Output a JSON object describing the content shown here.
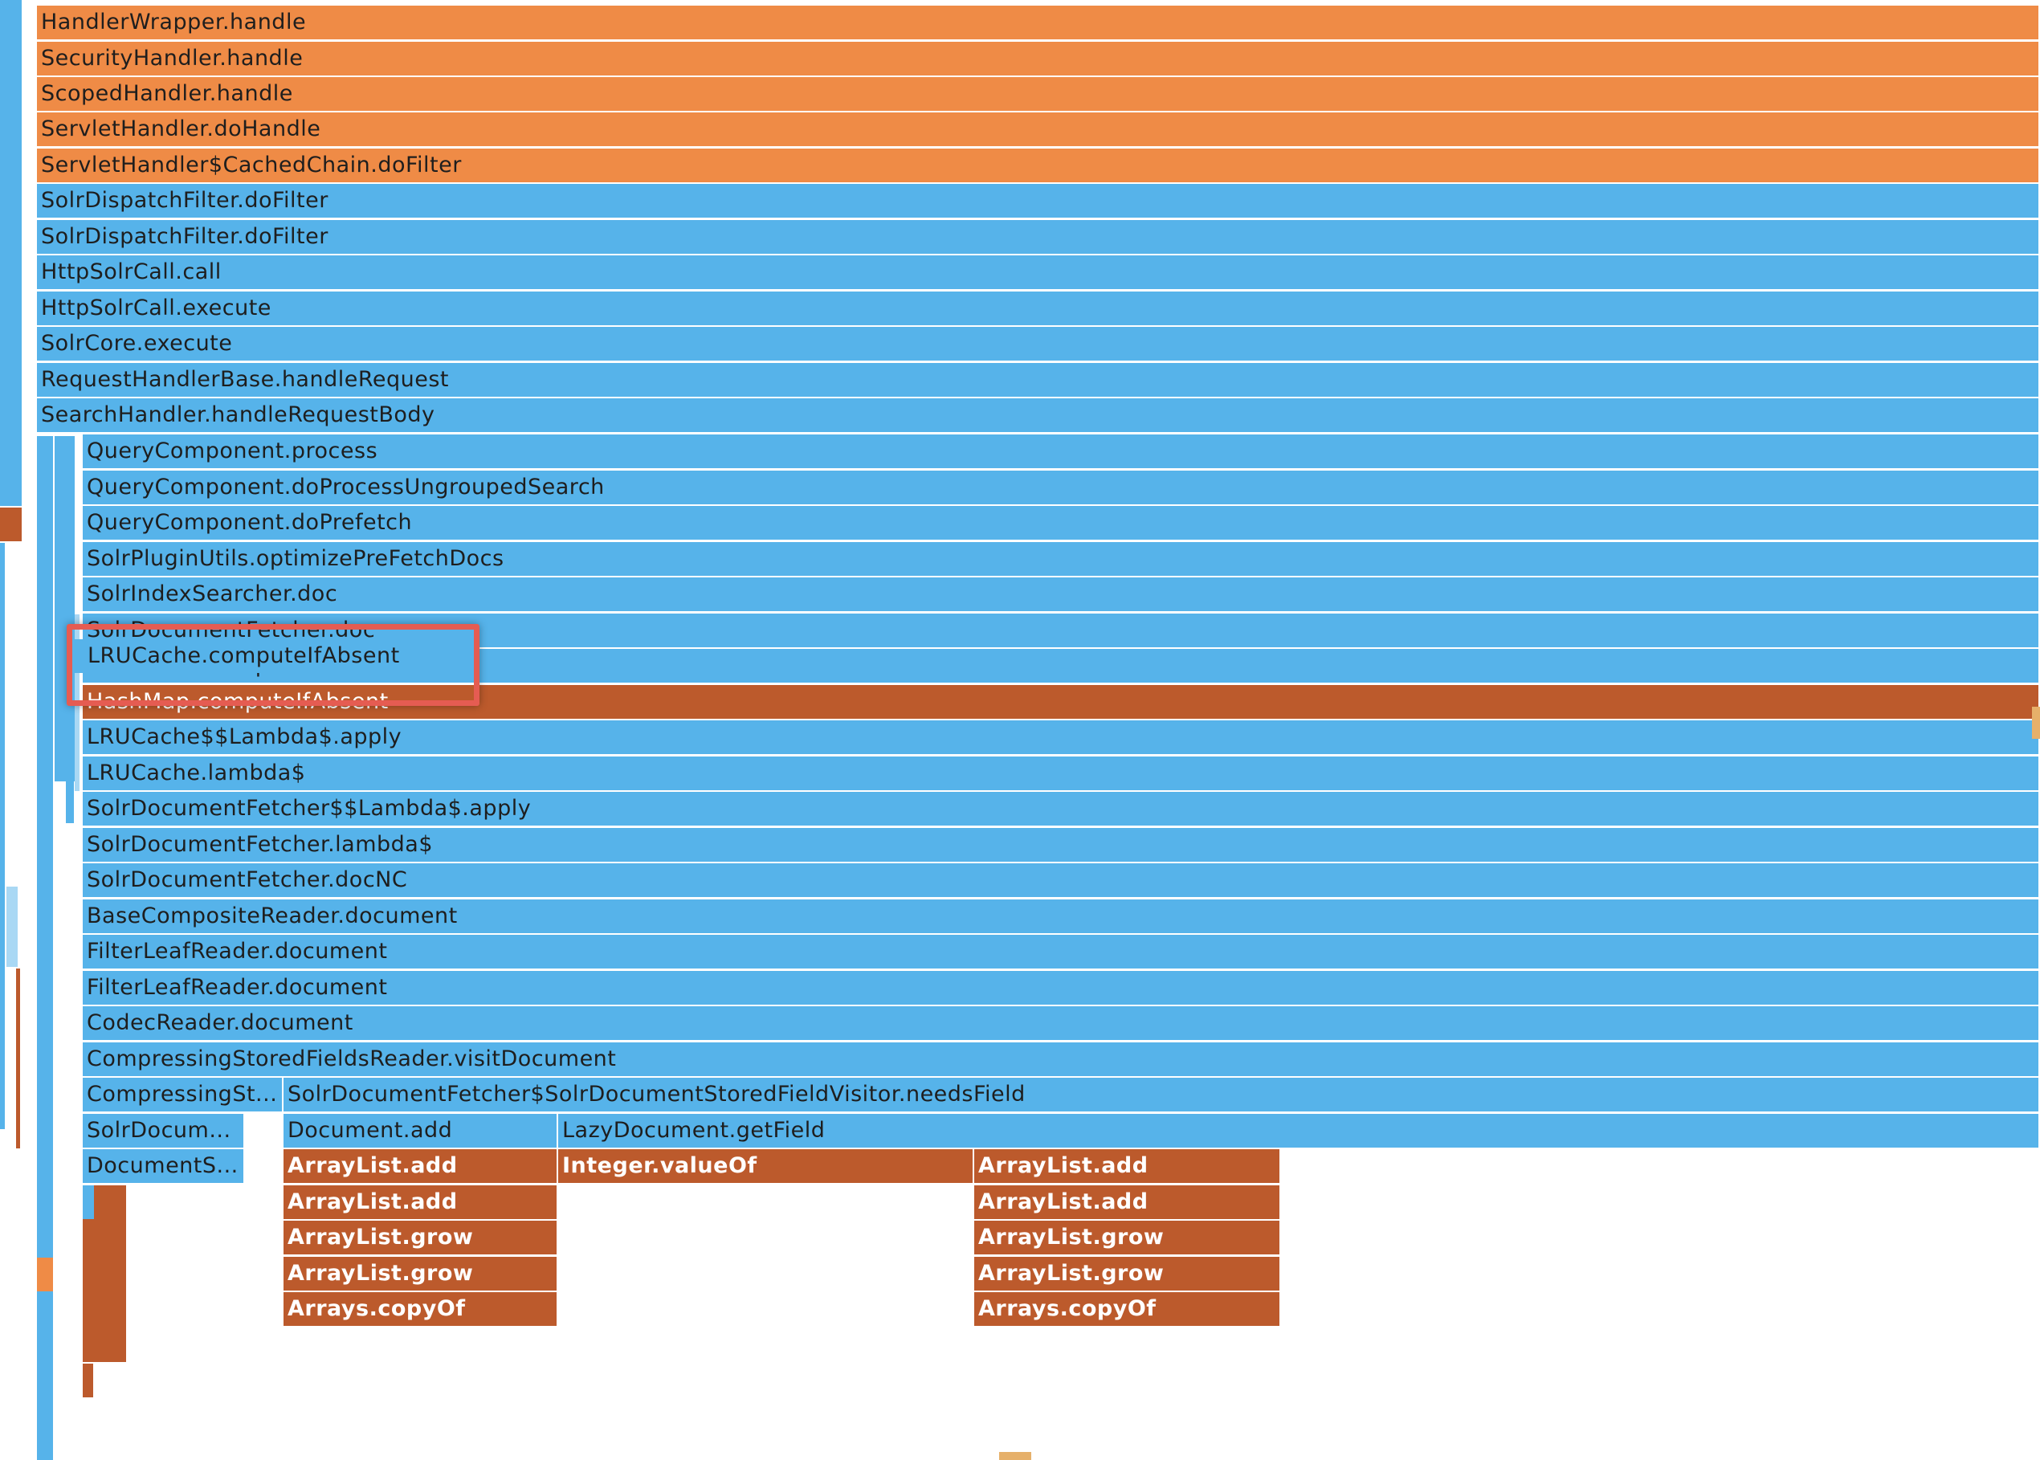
{
  "flamegraph": {
    "frames": [
      {
        "label": "HandlerWrapper.handle",
        "color": "orange"
      },
      {
        "label": "SecurityHandler.handle",
        "color": "orange"
      },
      {
        "label": "ScopedHandler.handle",
        "color": "orange"
      },
      {
        "label": "ServletHandler.doHandle",
        "color": "orange"
      },
      {
        "label": "ServletHandler$CachedChain.doFilter",
        "color": "orange"
      },
      {
        "label": "SolrDispatchFilter.doFilter",
        "color": "blue"
      },
      {
        "label": "SolrDispatchFilter.doFilter",
        "color": "blue"
      },
      {
        "label": "HttpSolrCall.call",
        "color": "blue"
      },
      {
        "label": "HttpSolrCall.execute",
        "color": "blue"
      },
      {
        "label": "SolrCore.execute",
        "color": "blue"
      },
      {
        "label": "RequestHandlerBase.handleRequest",
        "color": "blue"
      },
      {
        "label": "SearchHandler.handleRequestBody",
        "color": "blue"
      },
      {
        "label": "QueryComponent.process",
        "color": "blue"
      },
      {
        "label": "QueryComponent.doProcessUngroupedSearch",
        "color": "blue"
      },
      {
        "label": "QueryComponent.doPrefetch",
        "color": "blue"
      },
      {
        "label": "SolrPluginUtils.optimizePreFetchDocs",
        "color": "blue"
      },
      {
        "label": "SolrIndexSearcher.doc",
        "color": "blue"
      },
      {
        "label": "SolrDocumentFetcher.doc",
        "color": "blue"
      },
      {
        "label": "LRUCache.computeIfAbsent",
        "color": "blue"
      },
      {
        "label": "HashMap.computeIfAbsent",
        "color": "rust"
      },
      {
        "label": "LRUCache$$Lambda$.apply",
        "color": "blue"
      },
      {
        "label": "LRUCache.lambda$",
        "color": "blue"
      },
      {
        "label": "SolrDocumentFetcher$$Lambda$.apply",
        "color": "blue"
      },
      {
        "label": "SolrDocumentFetcher.lambda$",
        "color": "blue"
      },
      {
        "label": "SolrDocumentFetcher.docNC",
        "color": "blue"
      },
      {
        "label": "BaseCompositeReader.document",
        "color": "blue"
      },
      {
        "label": "FilterLeafReader.document",
        "color": "blue"
      },
      {
        "label": "FilterLeafReader.document",
        "color": "blue"
      },
      {
        "label": "CodecReader.document",
        "color": "blue"
      },
      {
        "label": "CompressingStoredFieldsReader.visitDocument",
        "color": "blue"
      },
      {
        "label": "CompressingSt...",
        "color": "blue"
      },
      {
        "label": "SolrDocumentFetcher$SolrDocumentStoredFieldVisitor.needsField",
        "color": "blue"
      },
      {
        "label": "SolrDocum...",
        "color": "blue"
      },
      {
        "label": "Document.add",
        "color": "blue"
      },
      {
        "label": "LazyDocument.getField",
        "color": "blue"
      },
      {
        "label": "DocumentS...",
        "color": "blue"
      },
      {
        "label": "ArrayList.add",
        "color": "rust"
      },
      {
        "label": "Integer.valueOf",
        "color": "rust"
      },
      {
        "label": "ArrayList.add",
        "color": "rust"
      },
      {
        "label": "ArrayList.add",
        "color": "rust"
      },
      {
        "label": "ArrayList.add",
        "color": "rust"
      },
      {
        "label": "ArrayList.grow",
        "color": "rust"
      },
      {
        "label": "ArrayList.grow",
        "color": "rust"
      },
      {
        "label": "ArrayList.grow",
        "color": "rust"
      },
      {
        "label": "ArrayList.grow",
        "color": "rust"
      },
      {
        "label": "Arrays.copyOf",
        "color": "rust"
      },
      {
        "label": "Arrays.copyOf",
        "color": "rust"
      }
    ],
    "highlight": {
      "label": "LRUCache.computeIfAbsent"
    },
    "colors": {
      "blue": "#56b3ea",
      "orange": "#ef8b46",
      "rust": "#bc5a2c",
      "highlight_border": "#e55c52"
    }
  }
}
